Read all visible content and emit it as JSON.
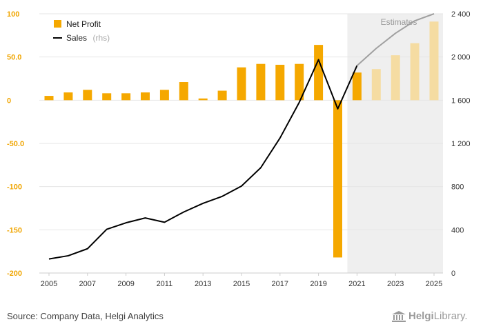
{
  "chart_data": {
    "type": "bar+line",
    "title": "",
    "legend": [
      {
        "name": "Net Profit",
        "marker": "bar",
        "suffix": ""
      },
      {
        "name": "Sales",
        "marker": "line",
        "suffix": "(rhs)"
      }
    ],
    "estimates_label": "Estimates",
    "estimates_from_year": 2021,
    "years": [
      2005,
      2006,
      2007,
      2008,
      2009,
      2010,
      2011,
      2012,
      2013,
      2014,
      2015,
      2016,
      2017,
      2018,
      2019,
      2020,
      2021,
      2022,
      2023,
      2024,
      2025
    ],
    "x_tick_labels": [
      "2005",
      "2007",
      "2009",
      "2011",
      "2013",
      "2015",
      "2017",
      "2019",
      "2021",
      "2023",
      "2025"
    ],
    "x_tick_years": [
      2005,
      2007,
      2009,
      2011,
      2013,
      2015,
      2017,
      2019,
      2021,
      2023,
      2025
    ],
    "net_profit": {
      "name": "Net Profit",
      "values": [
        5,
        9,
        12,
        8,
        8,
        9,
        12,
        21,
        2,
        11,
        38,
        42,
        41,
        42,
        64,
        -182,
        32,
        36,
        52,
        66,
        91
      ]
    },
    "sales": {
      "name": "Sales",
      "actual_years": [
        2005,
        2006,
        2007,
        2008,
        2009,
        2010,
        2011,
        2012,
        2013,
        2014,
        2015,
        2016,
        2017,
        2018,
        2019,
        2020,
        2021
      ],
      "actual_values": [
        130,
        160,
        225,
        405,
        465,
        510,
        470,
        565,
        645,
        710,
        805,
        975,
        1250,
        1580,
        1975,
        1520,
        1920
      ],
      "estimate_years": [
        2021,
        2022,
        2023,
        2024,
        2025
      ],
      "estimate_values": [
        1920,
        2080,
        2220,
        2335,
        2400
      ]
    },
    "y_left": {
      "min": -200,
      "max": 100,
      "ticks": [
        100,
        50,
        0,
        -50,
        -100,
        -150,
        -200
      ],
      "tick_labels": [
        "100",
        "50.0",
        "0",
        "-50.0",
        "-100",
        "-150",
        "-200"
      ]
    },
    "y_right": {
      "min": 0,
      "max": 2400,
      "ticks": [
        2400,
        2000,
        1600,
        1200,
        800,
        400,
        0
      ],
      "tick_labels": [
        "2 400",
        "2 000",
        "1 600",
        "1 200",
        "800",
        "400",
        "0"
      ]
    },
    "colors": {
      "bar_actual": "#f5a800",
      "bar_estimate": "#f5dca2",
      "sales_actual": "#000000",
      "sales_estimate": "#a0a0a0",
      "estimate_shade": "#efefef",
      "grid": "#e6e6e6",
      "left_axis_text": "#f0a500"
    }
  },
  "footer": {
    "source": "Source: Company Data, Helgi Analytics",
    "brand_bold": "Helgi",
    "brand_thin": "Library."
  }
}
